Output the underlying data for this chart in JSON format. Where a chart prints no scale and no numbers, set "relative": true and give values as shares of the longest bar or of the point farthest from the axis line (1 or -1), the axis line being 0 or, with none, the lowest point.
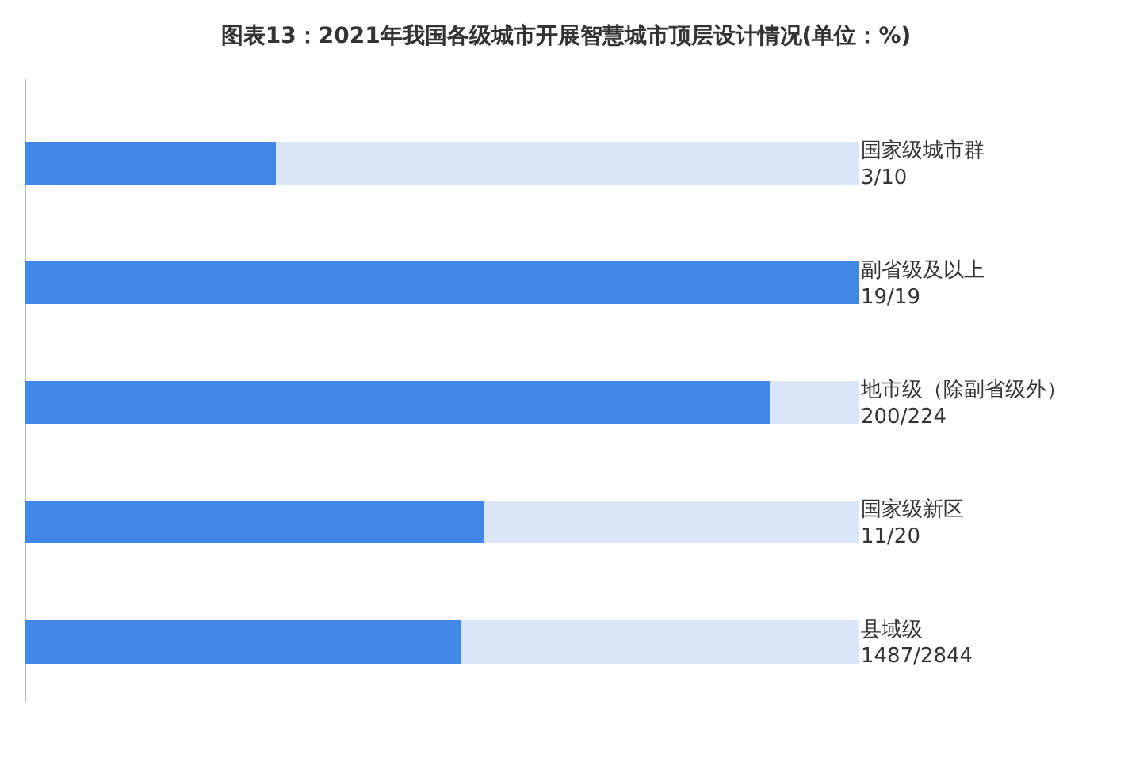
{
  "chart_data": {
    "type": "bar",
    "orientation": "horizontal",
    "stacked": true,
    "relative": true,
    "title": "图表13：2021年我国各级城市开展智慧城市顶层设计情况(单位：%)",
    "categories": [
      "国家级城市群\n3/10",
      "副省级及以上\n19/19",
      "地市级（除副省级外）\n200/224",
      "国家级新区\n11/20",
      "县域级\n1487/2844"
    ],
    "series": [
      {
        "color": "#4287e6",
        "values": [
          0.3,
          1,
          0.893,
          0.55,
          0.523
        ]
      },
      {
        "color": "#dae6f7",
        "values": [
          0.7,
          0,
          0.107,
          0.45,
          0.477
        ]
      }
    ],
    "grid": false
  }
}
